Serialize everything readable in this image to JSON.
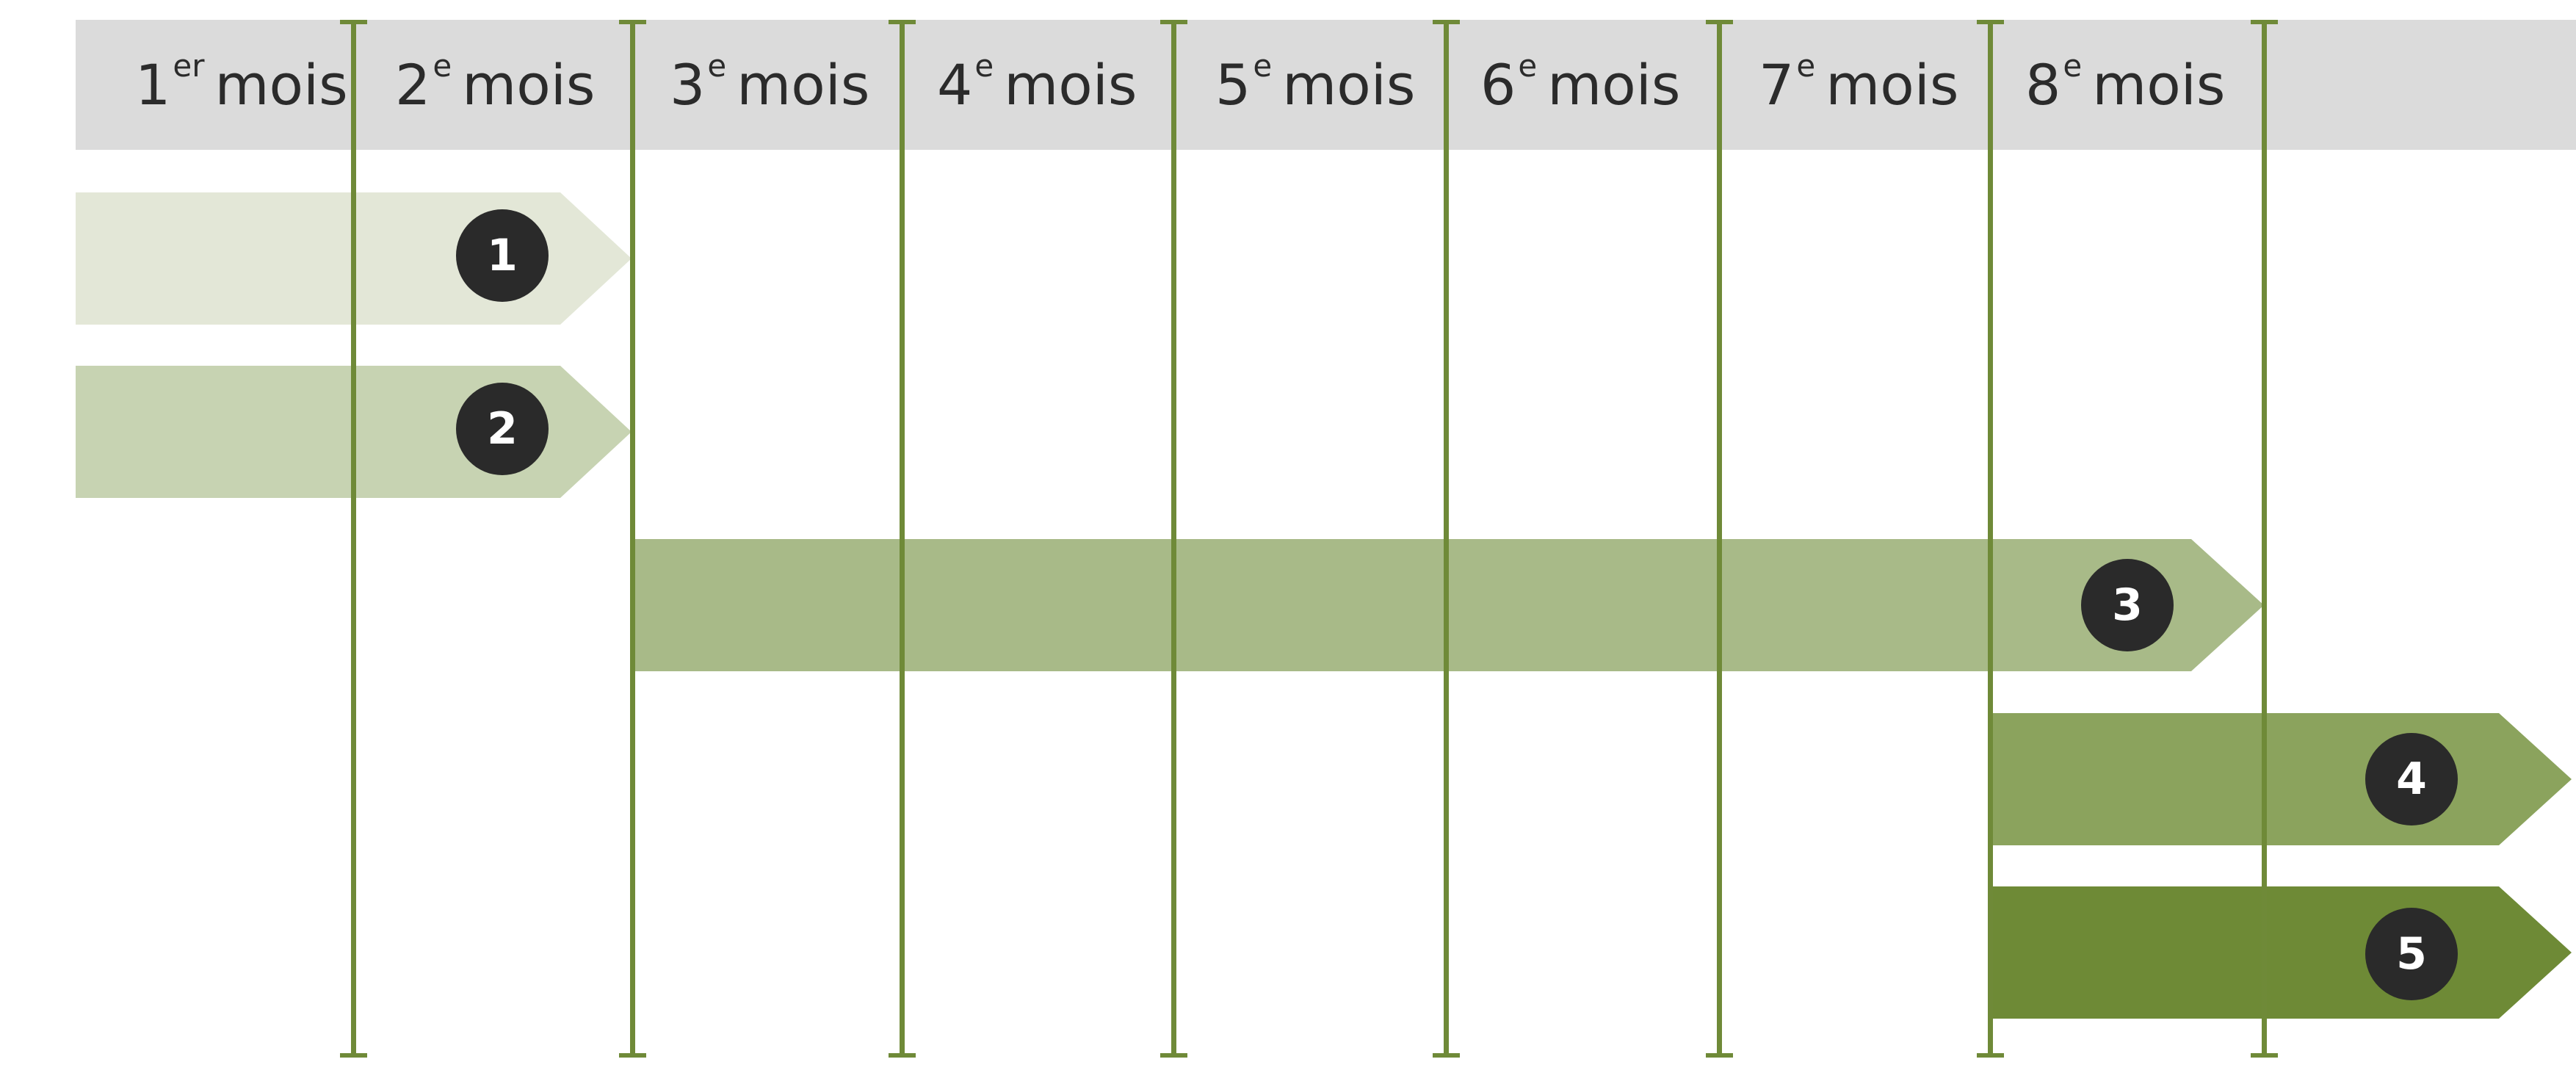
{
  "months": [
    {
      "num": "1",
      "sup": "er",
      "word": "mois"
    },
    {
      "num": "2",
      "sup": "e",
      "word": "mois"
    },
    {
      "num": "3",
      "sup": "e",
      "word": "mois"
    },
    {
      "num": "4",
      "sup": "e",
      "word": "mois"
    },
    {
      "num": "5",
      "sup": "e",
      "word": "mois"
    },
    {
      "num": "6",
      "sup": "e",
      "word": "mois"
    },
    {
      "num": "7",
      "sup": "e",
      "word": "mois"
    },
    {
      "num": "8",
      "sup": "e",
      "word": "mois"
    }
  ],
  "phases": [
    {
      "label": "1",
      "color": "#e3e7d7"
    },
    {
      "label": "2",
      "color": "#c7d3b2"
    },
    {
      "label": "3",
      "color": "#a8ba88"
    },
    {
      "label": "4",
      "color": "#8ba35d"
    },
    {
      "label": "5",
      "color": "#6e8a36"
    }
  ],
  "colors": {
    "header_band": "#dbdbdb",
    "gridline": "#6f8a38",
    "badge": "#2a2a2a"
  }
}
